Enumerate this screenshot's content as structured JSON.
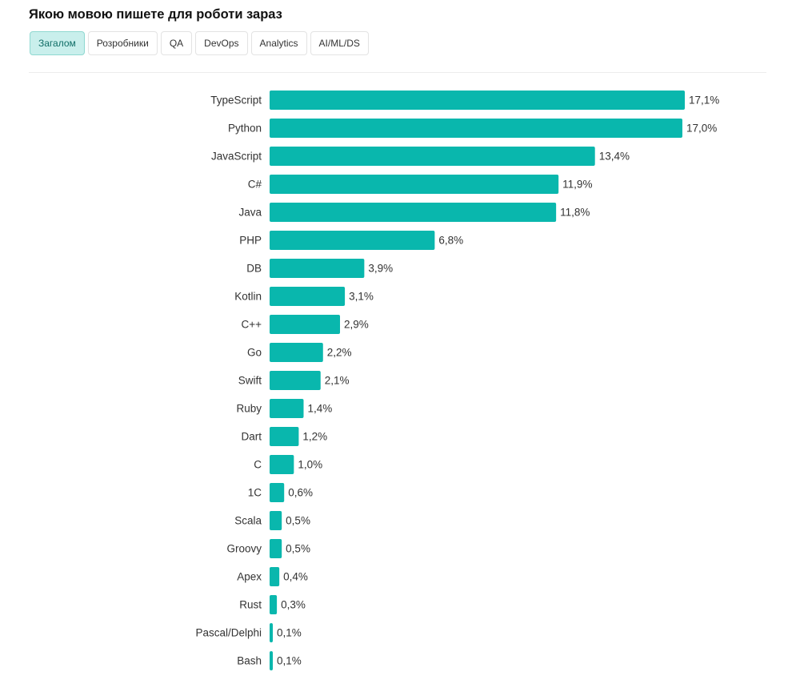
{
  "title": "Якою мовою пишете для роботи зараз",
  "tabs": [
    {
      "label": "Загалом",
      "active": true
    },
    {
      "label": "Розробники",
      "active": false
    },
    {
      "label": "QA",
      "active": false
    },
    {
      "label": "DevOps",
      "active": false
    },
    {
      "label": "Analytics",
      "active": false
    },
    {
      "label": "AI/ML/DS",
      "active": false
    }
  ],
  "colors": {
    "bar": "#09b7ad",
    "tab_active_bg": "#c9efec"
  },
  "chart_data": {
    "type": "bar",
    "orientation": "horizontal",
    "categories": [
      "TypeScript",
      "Python",
      "JavaScript",
      "C#",
      "Java",
      "PHP",
      "DB",
      "Kotlin",
      "C++",
      "Go",
      "Swift",
      "Ruby",
      "Dart",
      "C",
      "1C",
      "Scala",
      "Groovy",
      "Apex",
      "Rust",
      "Pascal/Delphi",
      "Bash"
    ],
    "values": [
      17.1,
      17.0,
      13.4,
      11.9,
      11.8,
      6.8,
      3.9,
      3.1,
      2.9,
      2.2,
      2.1,
      1.4,
      1.2,
      1.0,
      0.6,
      0.5,
      0.5,
      0.4,
      0.3,
      0.1,
      0.1
    ],
    "value_labels": [
      "17,1%",
      "17,0%",
      "13,4%",
      "11,9%",
      "11,8%",
      "6,8%",
      "3,9%",
      "3,1%",
      "2,9%",
      "2,2%",
      "2,1%",
      "1,4%",
      "1,2%",
      "1,0%",
      "0,6%",
      "0,5%",
      "0,5%",
      "0,4%",
      "0,3%",
      "0,1%",
      "0,1%"
    ],
    "unit": "%",
    "grid": false,
    "legend": "none"
  }
}
